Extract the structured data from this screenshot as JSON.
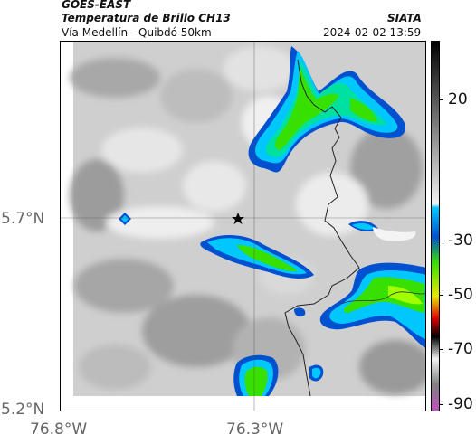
{
  "header": {
    "satellite": "GOES-EAST",
    "product": "Temperatura de Brillo CH13",
    "subtitle": "Vía Medellín - Quibdó 50km",
    "org": "SIATA",
    "datetime": "2024-02-02 13:59"
  },
  "axes": {
    "lat_labels": [
      "5.7°N",
      "5.2°N"
    ],
    "lon_labels": [
      "76.8°W",
      "76.3°W"
    ]
  },
  "colorbar": {
    "ticks": [
      "20",
      "-30",
      "-50",
      "-70",
      "-90"
    ],
    "colors": {
      "gray_warm": "#d8d8d8",
      "cyan": "#00c8ff",
      "blue": "#0050d0",
      "green": "#38e000",
      "yellow": "#e8e800",
      "red": "#e00000",
      "magenta": "#c050c0"
    }
  },
  "map": {
    "marker_icon": "star-icon",
    "features": [
      "country-border",
      "river",
      "cloud-tops"
    ]
  }
}
